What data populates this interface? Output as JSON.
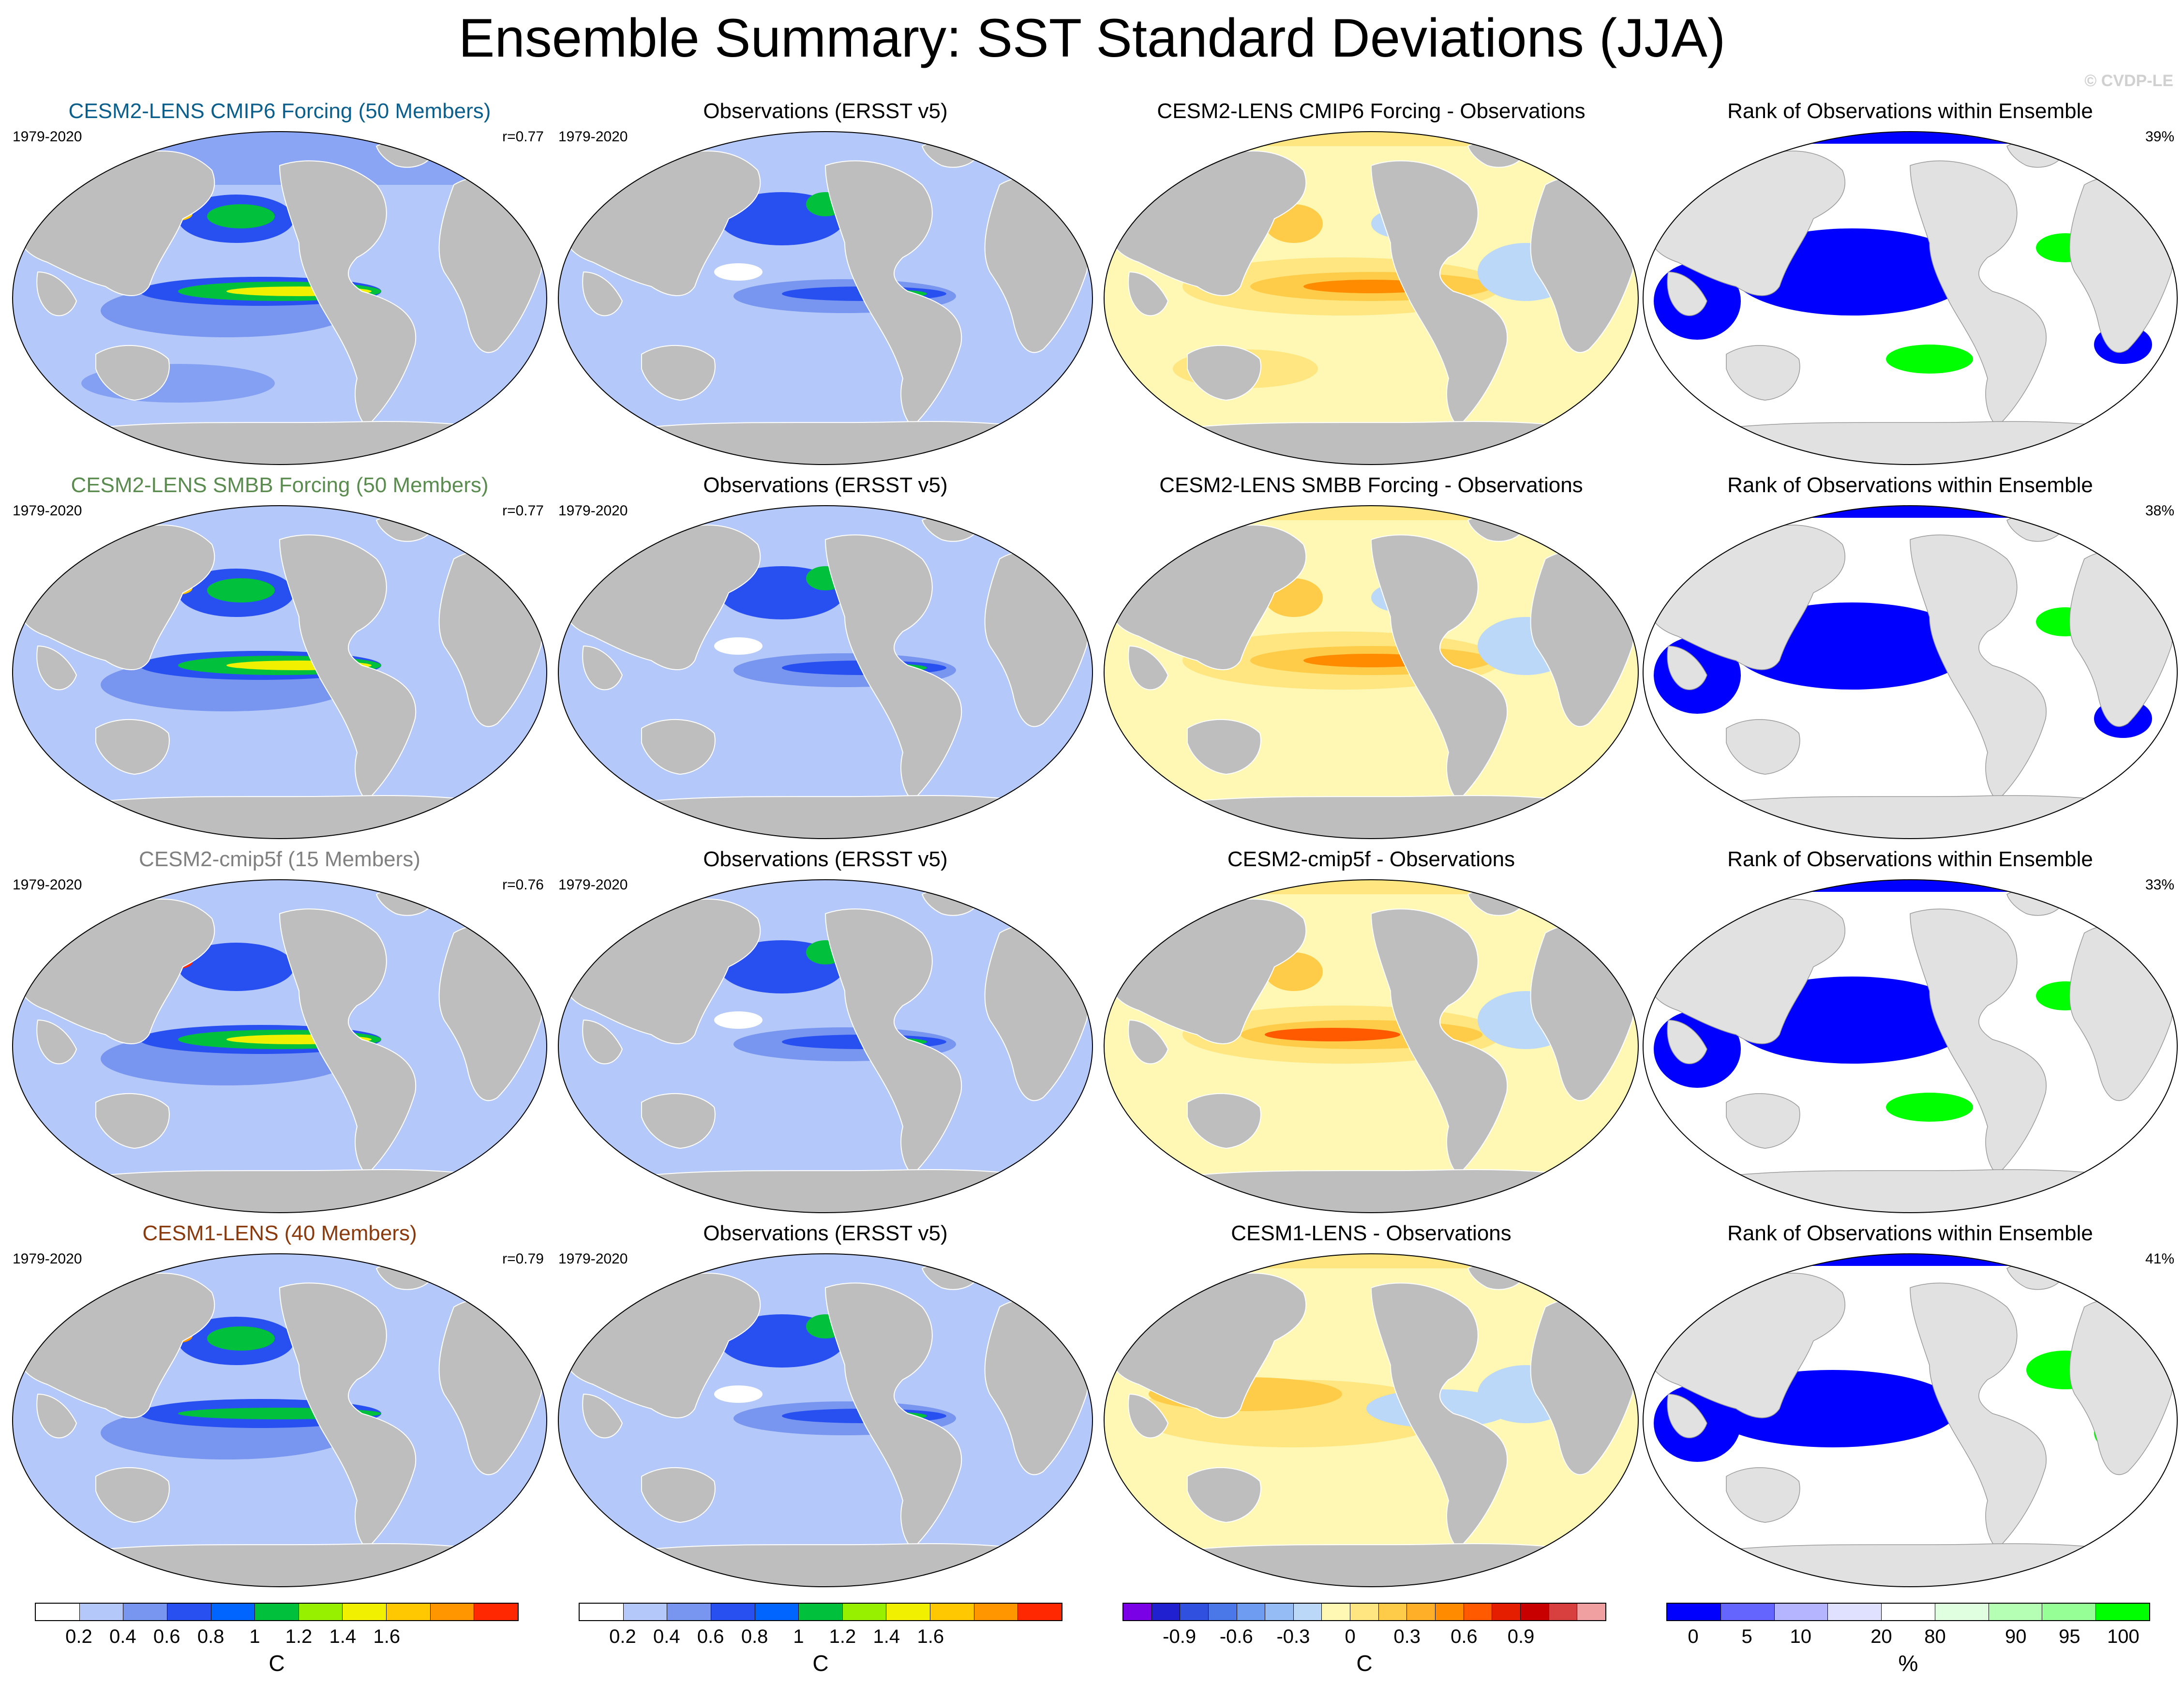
{
  "title": "Ensemble Summary: SST Standard Deviations (JJA)",
  "copyright": "© CVDP-LE",
  "rows": [
    {
      "model_title": "CESM2-LENS CMIP6 Forcing (50 Members)",
      "years": "1979-2020",
      "corr": "r=0.77",
      "obs_title": "Observations (ERSST v5)",
      "obs_years": "1979-2020",
      "diff_title": "CESM2-LENS CMIP6 Forcing - Observations",
      "rank_title": "Rank of Observations within Ensemble",
      "rank_pct": "39%"
    },
    {
      "model_title": "CESM2-LENS SMBB Forcing (50 Members)",
      "years": "1979-2020",
      "corr": "r=0.77",
      "obs_title": "Observations (ERSST v5)",
      "obs_years": "1979-2020",
      "diff_title": "CESM2-LENS SMBB Forcing - Observations",
      "rank_title": "Rank of Observations within Ensemble",
      "rank_pct": "38%"
    },
    {
      "model_title": "CESM2-cmip5f (15 Members)",
      "years": "1979-2020",
      "corr": "r=0.76",
      "obs_title": "Observations (ERSST v5)",
      "obs_years": "1979-2020",
      "diff_title": "CESM2-cmip5f - Observations",
      "rank_title": "Rank of Observations within Ensemble",
      "rank_pct": "33%"
    },
    {
      "model_title": "CESM1-LENS (40 Members)",
      "years": "1979-2020",
      "corr": "r=0.79",
      "obs_title": "Observations (ERSST v5)",
      "obs_years": "1979-2020",
      "diff_title": "CESM1-LENS - Observations",
      "rank_title": "Rank of Observations within Ensemble",
      "rank_pct": "41%"
    }
  ],
  "colorbars": {
    "sst": {
      "unit": "C",
      "colors": [
        "#ffffff",
        "#b4c8fa",
        "#7896f0",
        "#2850f0",
        "#0064ff",
        "#00c03c",
        "#96f000",
        "#f0f000",
        "#ffc800",
        "#ff9600",
        "#ff2800"
      ],
      "labels": [
        "0.2",
        "0.4",
        "0.6",
        "0.8",
        "1",
        "1.2",
        "1.4",
        "1.6"
      ]
    },
    "diff": {
      "unit": "C",
      "colors": [
        "#7a00e6",
        "#2020d0",
        "#3050e0",
        "#4a78e8",
        "#6e9cf0",
        "#96bcf5",
        "#bcd8f8",
        "#fff8b4",
        "#ffe680",
        "#ffcc4a",
        "#ffb028",
        "#ff8c00",
        "#ff5a00",
        "#e61e00",
        "#c80000",
        "#d84040",
        "#f0a0a0"
      ],
      "labels": [
        "-0.9",
        "-0.6",
        "-0.3",
        "0",
        "0.3",
        "0.6",
        "0.9"
      ]
    },
    "rank": {
      "unit": "%",
      "colors": [
        "#0000ff",
        "#6464ff",
        "#b4b4ff",
        "#e0e0ff",
        "#ffffff",
        "#e0ffe0",
        "#b4ffb4",
        "#96ff96",
        "#00ff00"
      ],
      "labels": [
        "0",
        "5",
        "10",
        "20",
        "80",
        "90",
        "95",
        "100"
      ]
    }
  },
  "map_colors": {
    "land": "#bebebe",
    "land_rank": "#e1e1e1",
    "ocean_base": "#b4c8fa"
  }
}
